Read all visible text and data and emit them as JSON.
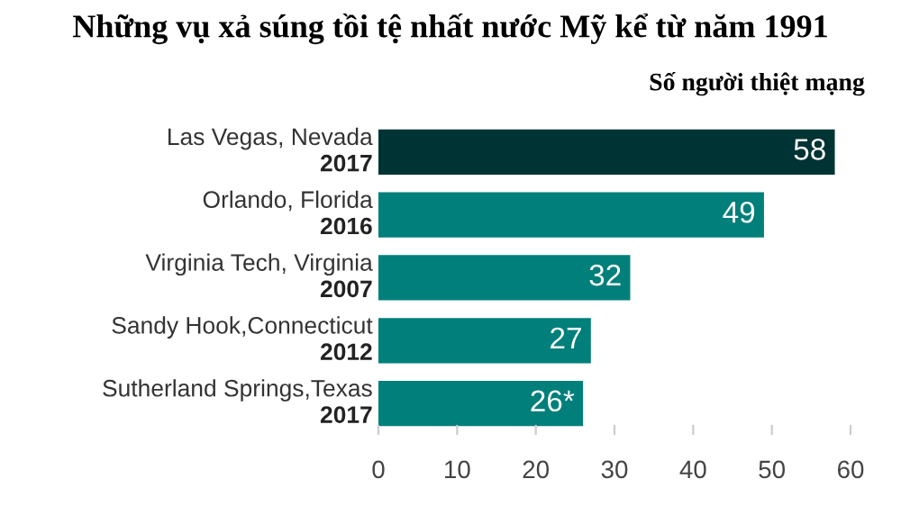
{
  "chart_data": {
    "type": "bar",
    "orientation": "horizontal",
    "title": "Những vụ xả súng tồi tệ nhất nước Mỹ kể từ năm 1991",
    "subtitle": "Số người thiệt mạng",
    "categories": [
      "Las Vegas, Nevada\n2017",
      "Orlando, Florida\n2016",
      "Virginia Tech, Virginia\n2007",
      "Sandy Hook,Connecticut\n2012",
      "Sutherland Springs,Texas\n2017"
    ],
    "values": [
      58,
      49,
      32,
      27,
      26
    ],
    "colors": [
      "#003333",
      "#007f7b",
      "#007f7b",
      "#007f7b",
      "#007f7b"
    ],
    "value_labels": [
      "58",
      "49",
      "32",
      "27",
      "26*"
    ],
    "xlim": [
      0,
      60
    ],
    "xticks": [
      0,
      10,
      20,
      30,
      40,
      50,
      60
    ],
    "grid": false,
    "legend": false
  }
}
